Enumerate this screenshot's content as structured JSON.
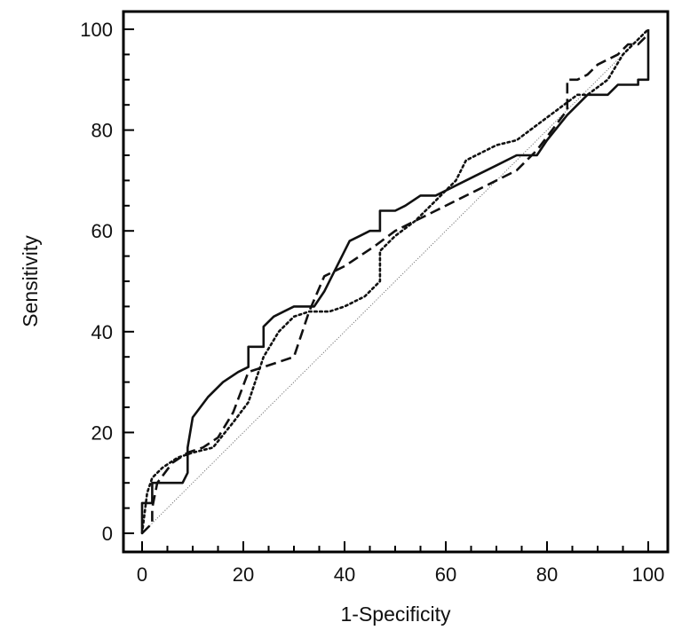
{
  "chart_data": {
    "type": "line",
    "xlabel": "1-Specificity",
    "ylabel": "Sensitivity",
    "xlim": [
      0,
      100
    ],
    "ylim": [
      0,
      100
    ],
    "xticks": [
      0,
      20,
      40,
      60,
      80,
      100
    ],
    "yticks": [
      0,
      20,
      40,
      60,
      80,
      100
    ],
    "x_tick_labels": [
      "0",
      "20",
      "40",
      "60",
      "80",
      "100"
    ],
    "y_tick_labels": [
      "0",
      "20",
      "40",
      "60",
      "80",
      "100"
    ],
    "grid": false,
    "legend": "none",
    "reference_line": {
      "x": [
        0,
        100
      ],
      "y": [
        0,
        100
      ],
      "style": "thin dotted"
    },
    "series": [
      {
        "style": "solid",
        "x": [
          0,
          0,
          2,
          2,
          3,
          8,
          9,
          9,
          10,
          13,
          16,
          19,
          21,
          21,
          24,
          24,
          26,
          28,
          30,
          31,
          33,
          34,
          36,
          39,
          41,
          43,
          45,
          47,
          47,
          50,
          52,
          55,
          58,
          62,
          66,
          70,
          74,
          78,
          80,
          84,
          88,
          92,
          94,
          96,
          98,
          98,
          100,
          100
        ],
        "y": [
          0,
          6,
          6,
          10,
          10,
          10,
          12,
          17,
          23,
          27,
          30,
          32,
          33,
          37,
          37,
          41,
          43,
          44,
          45,
          45,
          45,
          45,
          48,
          54,
          58,
          59,
          60,
          60,
          64,
          64,
          65,
          67,
          67,
          69,
          71,
          73,
          75,
          75,
          78,
          83,
          87,
          87,
          89,
          89,
          89,
          90,
          90,
          100
        ]
      },
      {
        "style": "dashed",
        "x": [
          0,
          2,
          2,
          3,
          6,
          9,
          12,
          15,
          18,
          21,
          24,
          27,
          30,
          33,
          36,
          40,
          43,
          46,
          50,
          54,
          58,
          62,
          66,
          70,
          74,
          78,
          81,
          84,
          84,
          86,
          88,
          90,
          92,
          94,
          96,
          98,
          100
        ],
        "y": [
          0,
          2,
          5,
          10,
          14,
          16,
          17,
          19,
          24,
          32,
          33,
          34,
          35,
          44,
          51,
          53,
          55,
          57,
          60,
          62,
          64,
          66,
          68,
          70,
          72,
          76,
          80,
          84,
          90,
          90,
          91,
          93,
          94,
          95,
          97,
          97,
          99
        ]
      },
      {
        "style": "dotted",
        "x": [
          0,
          1,
          2,
          4,
          7,
          10,
          14,
          18,
          21,
          24,
          27,
          30,
          33,
          37,
          40,
          44,
          47,
          47,
          50,
          54,
          58,
          62,
          64,
          66,
          70,
          74,
          78,
          82,
          86,
          88,
          92,
          95,
          97,
          100
        ],
        "y": [
          0,
          8,
          11,
          13,
          15,
          16,
          17,
          22,
          26,
          35,
          40,
          43,
          44,
          44,
          45,
          47,
          50,
          56,
          59,
          62,
          66,
          70,
          74,
          75,
          77,
          78,
          81,
          84,
          87,
          87,
          90,
          95,
          97,
          100
        ]
      }
    ]
  }
}
